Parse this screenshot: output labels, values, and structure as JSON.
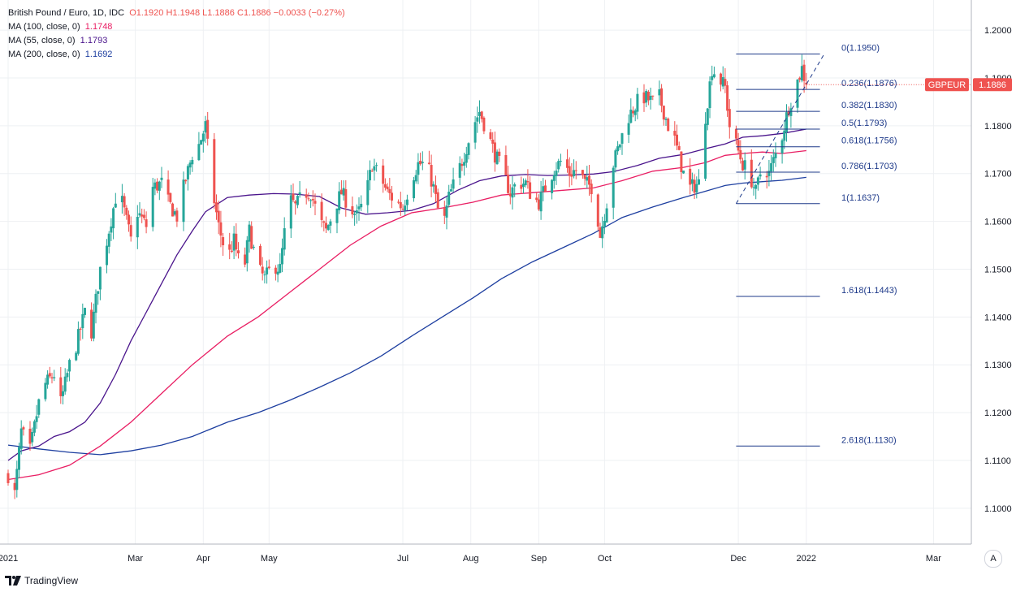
{
  "legend": {
    "title": "British Pound / Euro, 1D, IDC",
    "o_label": "O",
    "o": "1.1920",
    "h_label": "H",
    "h": "1.1948",
    "l_label": "L",
    "l": "1.1886",
    "c_label": "C",
    "c": "1.1886",
    "change": "−0.0033 (−0.27%)",
    "ma100_label": "MA (100, close, 0)",
    "ma100_value": "1.1748",
    "ma55_label": "MA (55, close, 0)",
    "ma55_value": "1.1793",
    "ma200_label": "MA (200, close, 0)",
    "ma200_value": "1.1692"
  },
  "price_badge": {
    "symbol": "GBPEUR",
    "price": "1.1886"
  },
  "footer": {
    "brand": "TradingView"
  },
  "auto_button": "A",
  "colors": {
    "up": "#26a69a",
    "down": "#ef5350",
    "ma100": "#e91e63",
    "ma55": "#4a148c",
    "ma200": "#1e3fa0",
    "fib": "#1e3a8a",
    "grid": "#eef0f3"
  },
  "chart_data": {
    "type": "candlestick",
    "title": "British Pound / Euro, 1D, IDC",
    "ylim": [
      1.0925,
      1.2063
    ],
    "y_ticks": [
      "1.1000",
      "1.1100",
      "1.1200",
      "1.1300",
      "1.1400",
      "1.1500",
      "1.1600",
      "1.1700",
      "1.1800",
      "1.1900",
      "1.2000"
    ],
    "y_tick_values": [
      1.1,
      1.11,
      1.12,
      1.13,
      1.14,
      1.15,
      1.16,
      1.17,
      1.18,
      1.19,
      1.2
    ],
    "x_labels": [
      {
        "label": "2021",
        "day": 0
      },
      {
        "label": "Mar",
        "day": 58
      },
      {
        "label": "Apr",
        "day": 89
      },
      {
        "label": "May",
        "day": 119
      },
      {
        "label": "Jul",
        "day": 180
      },
      {
        "label": "Aug",
        "day": 211
      },
      {
        "label": "Sep",
        "day": 242
      },
      {
        "label": "Oct",
        "day": 272
      },
      {
        "label": "Dec",
        "day": 333
      },
      {
        "label": "2022",
        "day": 364
      },
      {
        "label": "Mar",
        "day": 422
      }
    ],
    "close_anchors": [
      [
        0,
        1.107
      ],
      [
        3,
        1.103
      ],
      [
        6,
        1.116
      ],
      [
        10,
        1.112
      ],
      [
        14,
        1.122
      ],
      [
        17,
        1.126
      ],
      [
        21,
        1.128
      ],
      [
        24,
        1.122
      ],
      [
        28,
        1.13
      ],
      [
        31,
        1.134
      ],
      [
        35,
        1.141
      ],
      [
        38,
        1.137
      ],
      [
        42,
        1.15
      ],
      [
        45,
        1.156
      ],
      [
        49,
        1.165
      ],
      [
        52,
        1.164
      ],
      [
        56,
        1.156
      ],
      [
        59,
        1.162
      ],
      [
        63,
        1.159
      ],
      [
        66,
        1.167
      ],
      [
        70,
        1.168
      ],
      [
        73,
        1.164
      ],
      [
        77,
        1.161
      ],
      [
        80,
        1.167
      ],
      [
        84,
        1.174
      ],
      [
        87,
        1.176
      ],
      [
        90,
        1.18
      ],
      [
        93,
        1.167
      ],
      [
        96,
        1.159
      ],
      [
        100,
        1.152
      ],
      [
        103,
        1.156
      ],
      [
        107,
        1.148
      ],
      [
        110,
        1.158
      ],
      [
        114,
        1.15
      ],
      [
        117,
        1.148
      ],
      [
        121,
        1.151
      ],
      [
        124,
        1.15
      ],
      [
        128,
        1.165
      ],
      [
        131,
        1.163
      ],
      [
        135,
        1.166
      ],
      [
        138,
        1.166
      ],
      [
        142,
        1.16
      ],
      [
        145,
        1.158
      ],
      [
        149,
        1.163
      ],
      [
        152,
        1.166
      ],
      [
        156,
        1.163
      ],
      [
        159,
        1.161
      ],
      [
        163,
        1.165
      ],
      [
        166,
        1.172
      ],
      [
        170,
        1.169
      ],
      [
        173,
        1.166
      ],
      [
        177,
        1.164
      ],
      [
        180,
        1.163
      ],
      [
        184,
        1.169
      ],
      [
        187,
        1.172
      ],
      [
        191,
        1.172
      ],
      [
        194,
        1.167
      ],
      [
        198,
        1.158
      ],
      [
        201,
        1.165
      ],
      [
        205,
        1.17
      ],
      [
        208,
        1.174
      ],
      [
        212,
        1.18
      ],
      [
        215,
        1.183
      ],
      [
        219,
        1.178
      ],
      [
        222,
        1.174
      ],
      [
        225,
        1.171
      ],
      [
        229,
        1.166
      ],
      [
        232,
        1.168
      ],
      [
        236,
        1.168
      ],
      [
        239,
        1.165
      ],
      [
        242,
        1.164
      ],
      [
        246,
        1.168
      ],
      [
        249,
        1.171
      ],
      [
        253,
        1.173
      ],
      [
        256,
        1.17
      ],
      [
        260,
        1.171
      ],
      [
        263,
        1.168
      ],
      [
        267,
        1.167
      ],
      [
        270,
        1.157
      ],
      [
        273,
        1.164
      ],
      [
        276,
        1.172
      ],
      [
        280,
        1.178
      ],
      [
        283,
        1.182
      ],
      [
        287,
        1.185
      ],
      [
        290,
        1.186
      ],
      [
        294,
        1.185
      ],
      [
        297,
        1.186
      ],
      [
        301,
        1.18
      ],
      [
        304,
        1.177
      ],
      [
        308,
        1.17
      ],
      [
        311,
        1.167
      ],
      [
        315,
        1.168
      ],
      [
        318,
        1.182
      ],
      [
        321,
        1.192
      ],
      [
        324,
        1.19
      ],
      [
        327,
        1.188
      ],
      [
        329,
        1.18
      ],
      [
        332,
        1.176
      ],
      [
        335,
        1.172
      ],
      [
        338,
        1.17
      ],
      [
        341,
        1.166
      ],
      [
        344,
        1.172
      ],
      [
        347,
        1.17
      ],
      [
        350,
        1.174
      ],
      [
        353,
        1.178
      ],
      [
        356,
        1.184
      ],
      [
        359,
        1.188
      ],
      [
        362,
        1.192
      ],
      [
        364,
        1.1886
      ]
    ],
    "ma55_anchors": [
      [
        0,
        1.11
      ],
      [
        6,
        1.112
      ],
      [
        14,
        1.113
      ],
      [
        21,
        1.115
      ],
      [
        28,
        1.116
      ],
      [
        35,
        1.118
      ],
      [
        42,
        1.122
      ],
      [
        49,
        1.128
      ],
      [
        56,
        1.135
      ],
      [
        63,
        1.141
      ],
      [
        70,
        1.147
      ],
      [
        77,
        1.153
      ],
      [
        84,
        1.158
      ],
      [
        90,
        1.162
      ],
      [
        100,
        1.165
      ],
      [
        110,
        1.1655
      ],
      [
        121,
        1.1658
      ],
      [
        131,
        1.1657
      ],
      [
        142,
        1.1652
      ],
      [
        152,
        1.1628
      ],
      [
        163,
        1.1615
      ],
      [
        173,
        1.1618
      ],
      [
        184,
        1.1623
      ],
      [
        194,
        1.1637
      ],
      [
        205,
        1.1665
      ],
      [
        215,
        1.1685
      ],
      [
        225,
        1.1695
      ],
      [
        236,
        1.1698
      ],
      [
        246,
        1.1696
      ],
      [
        256,
        1.1697
      ],
      [
        267,
        1.1699
      ],
      [
        276,
        1.1704
      ],
      [
        287,
        1.1717
      ],
      [
        297,
        1.1732
      ],
      [
        308,
        1.174
      ],
      [
        318,
        1.1752
      ],
      [
        327,
        1.1762
      ],
      [
        335,
        1.1776
      ],
      [
        344,
        1.1779
      ],
      [
        353,
        1.1784
      ],
      [
        364,
        1.1793
      ]
    ],
    "ma100_anchors": [
      [
        0,
        1.106
      ],
      [
        14,
        1.107
      ],
      [
        28,
        1.109
      ],
      [
        42,
        1.113
      ],
      [
        56,
        1.118
      ],
      [
        70,
        1.124
      ],
      [
        84,
        1.13
      ],
      [
        100,
        1.136
      ],
      [
        114,
        1.14
      ],
      [
        128,
        1.145
      ],
      [
        142,
        1.15
      ],
      [
        156,
        1.155
      ],
      [
        170,
        1.159
      ],
      [
        184,
        1.1618
      ],
      [
        198,
        1.1628
      ],
      [
        212,
        1.164
      ],
      [
        225,
        1.1655
      ],
      [
        239,
        1.166
      ],
      [
        253,
        1.1665
      ],
      [
        267,
        1.167
      ],
      [
        280,
        1.1685
      ],
      [
        294,
        1.1705
      ],
      [
        308,
        1.1713
      ],
      [
        318,
        1.1723
      ],
      [
        327,
        1.1738
      ],
      [
        335,
        1.1742
      ],
      [
        344,
        1.1745
      ],
      [
        353,
        1.1742
      ],
      [
        364,
        1.1748
      ]
    ],
    "ma200_anchors": [
      [
        0,
        1.1132
      ],
      [
        14,
        1.1124
      ],
      [
        28,
        1.1117
      ],
      [
        42,
        1.1112
      ],
      [
        56,
        1.112
      ],
      [
        70,
        1.1132
      ],
      [
        84,
        1.115
      ],
      [
        100,
        1.118
      ],
      [
        114,
        1.12
      ],
      [
        128,
        1.1225
      ],
      [
        142,
        1.1253
      ],
      [
        156,
        1.1283
      ],
      [
        170,
        1.1318
      ],
      [
        184,
        1.136
      ],
      [
        198,
        1.14
      ],
      [
        212,
        1.144
      ],
      [
        225,
        1.148
      ],
      [
        239,
        1.1515
      ],
      [
        253,
        1.1545
      ],
      [
        267,
        1.1575
      ],
      [
        280,
        1.1608
      ],
      [
        294,
        1.163
      ],
      [
        308,
        1.165
      ],
      [
        318,
        1.1663
      ],
      [
        327,
        1.1675
      ],
      [
        335,
        1.168
      ],
      [
        344,
        1.1683
      ],
      [
        353,
        1.1686
      ],
      [
        364,
        1.1692
      ]
    ],
    "fibonacci": {
      "start_day": 332,
      "end_day": 364,
      "extend_to_day": 368,
      "levels": [
        {
          "text": "0(1.1950)",
          "value": 1.195,
          "label_day": 333
        },
        {
          "text": "0.236(1.1876)",
          "value": 1.1876,
          "label_day": 333
        },
        {
          "text": "0.382(1.1830)",
          "value": 1.183,
          "label_day": 333
        },
        {
          "text": "0.5(1.1793)",
          "value": 1.1793,
          "label_day": 333
        },
        {
          "text": "0.618(1.1756)",
          "value": 1.1756,
          "label_day": 333
        },
        {
          "text": "0.786(1.1703)",
          "value": 1.1703,
          "label_day": 333
        },
        {
          "text": "1(1.1637)",
          "value": 1.1637,
          "label_day": 333
        },
        {
          "text": "1.618(1.1443)",
          "value": 1.1443,
          "label_day": 333
        },
        {
          "text": "2.618(1.1130)",
          "value": 1.113,
          "label_day": 333
        }
      ],
      "trend_from": [
        332,
        1.1637
      ],
      "trend_to": [
        364,
        1.195
      ]
    }
  }
}
